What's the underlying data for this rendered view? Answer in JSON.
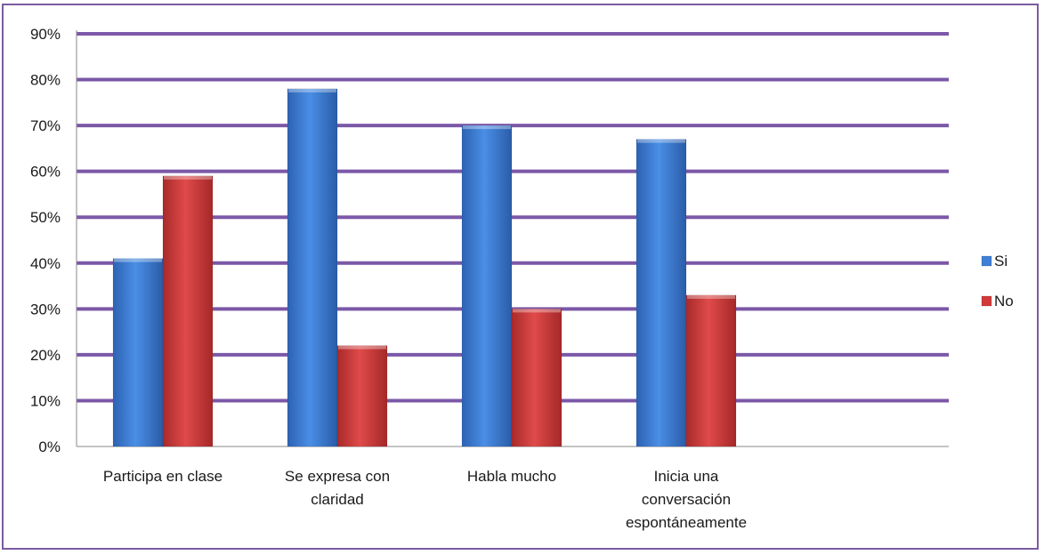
{
  "chart_data": {
    "type": "bar",
    "categories": [
      [
        "Participa en clase"
      ],
      [
        "Se expresa con",
        "claridad"
      ],
      [
        "Habla mucho"
      ],
      [
        "Inicia una",
        "conversación",
        "espontáneamente"
      ]
    ],
    "series": [
      {
        "name": "Si",
        "values": [
          41,
          78,
          70,
          67
        ],
        "color": "#3f7fd6"
      },
      {
        "name": "No",
        "values": [
          59,
          22,
          30,
          33
        ],
        "color": "#d23a3a"
      }
    ],
    "ylim": [
      0,
      90
    ],
    "yticks": [
      "0%",
      "10%",
      "20%",
      "30%",
      "40%",
      "50%",
      "60%",
      "70%",
      "80%",
      "90%"
    ],
    "grid": true,
    "gridline_color": "#7b58a8",
    "legend_position": "right",
    "title": "",
    "xlabel": "",
    "ylabel": ""
  }
}
